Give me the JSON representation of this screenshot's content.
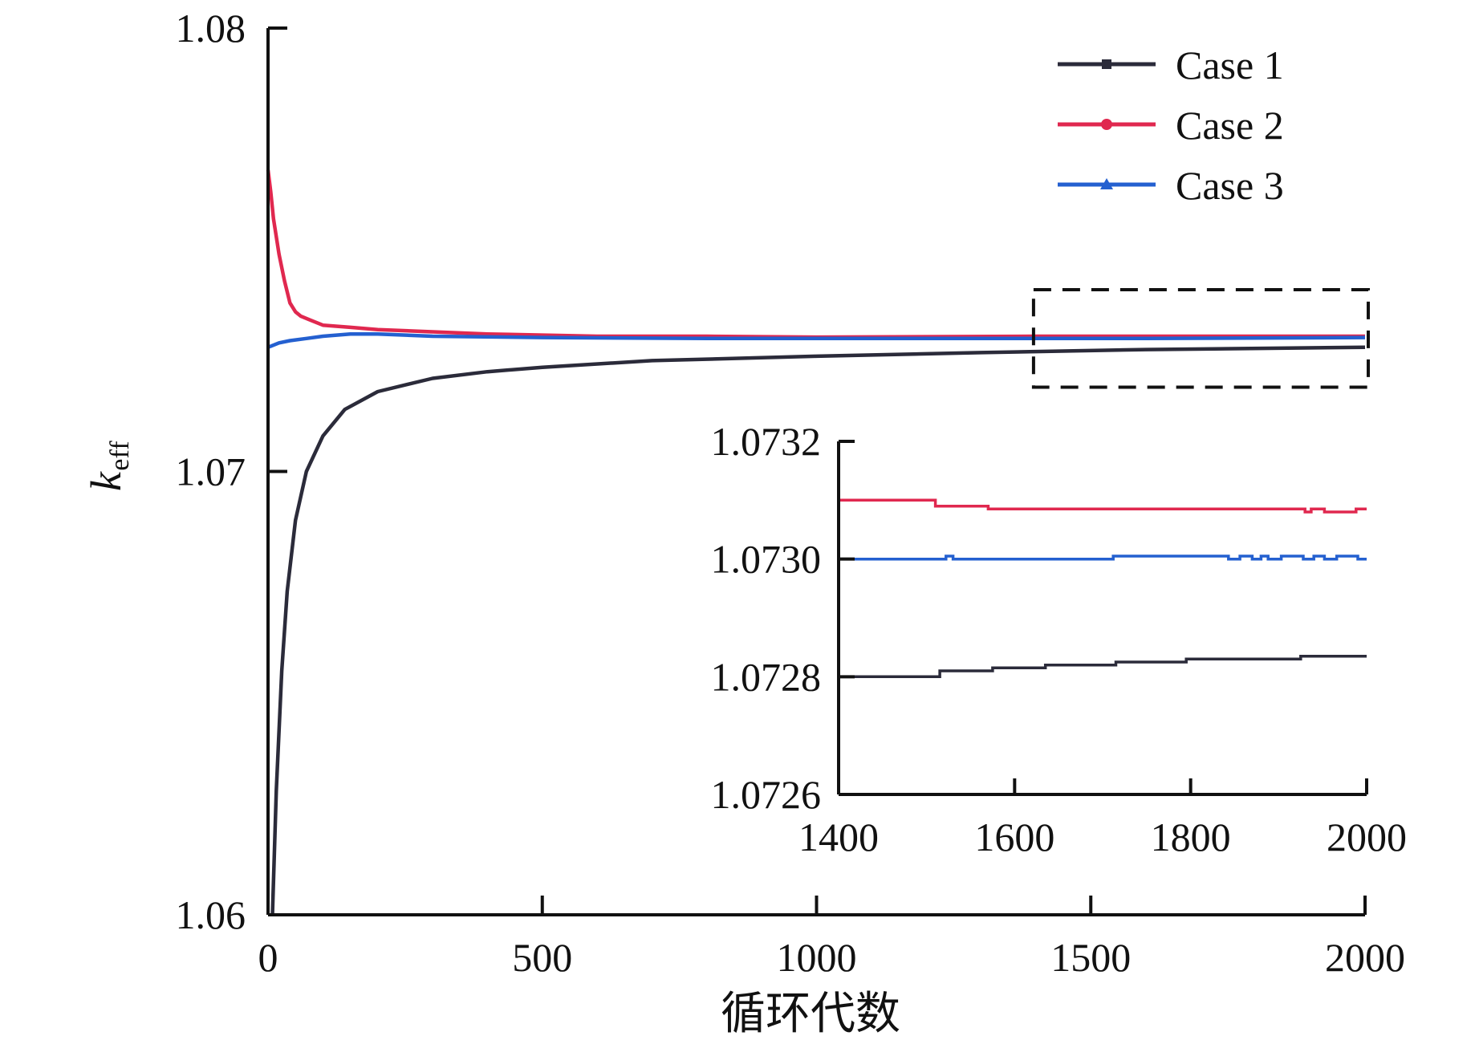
{
  "chart_data": [
    {
      "type": "line",
      "xlabel": "循环代数",
      "ylabel": "k",
      "ylabel_sub": "eff",
      "xlim": [
        0,
        2000
      ],
      "ylim": [
        1.06,
        1.08
      ],
      "xticks": [
        0,
        500,
        1000,
        1500,
        2000
      ],
      "xtick_labels": [
        "0",
        "500",
        "1000",
        "1500",
        "2000"
      ],
      "yticks": [
        1.06,
        1.07,
        1.08
      ],
      "ytick_labels": [
        "1.06",
        "1.07",
        "1.08"
      ],
      "legend": {
        "position": "top-right",
        "entries": [
          "Case 1",
          "Case 2",
          "Case 3"
        ]
      },
      "series": [
        {
          "name": "Case 1",
          "color": "#2b2b3a",
          "marker": "square",
          "x": [
            8,
            15,
            25,
            35,
            50,
            70,
            100,
            140,
            200,
            300,
            400,
            500,
            700,
            1000,
            1300,
            1600,
            2000
          ],
          "y": [
            1.06,
            1.0628,
            1.0655,
            1.0673,
            1.0689,
            1.07,
            1.0708,
            1.0714,
            1.0718,
            1.0721,
            1.07225,
            1.07235,
            1.0725,
            1.0726,
            1.07268,
            1.07275,
            1.0728
          ]
        },
        {
          "name": "Case 2",
          "color": "#e0284f",
          "marker": "circle",
          "x": [
            0,
            5,
            10,
            20,
            30,
            40,
            50,
            60,
            80,
            100,
            150,
            200,
            300,
            400,
            600,
            800,
            1000,
            1400,
            2000
          ],
          "y": [
            1.0768,
            1.0763,
            1.0757,
            1.0749,
            1.0743,
            1.0738,
            1.0736,
            1.0735,
            1.0734,
            1.0733,
            1.07325,
            1.0732,
            1.07315,
            1.0731,
            1.07305,
            1.07305,
            1.07303,
            1.07305,
            1.07305
          ]
        },
        {
          "name": "Case 3",
          "color": "#2460d0",
          "marker": "triangle",
          "x": [
            0,
            20,
            40,
            70,
            100,
            150,
            200,
            300,
            500,
            800,
            1200,
            1600,
            2000
          ],
          "y": [
            1.0728,
            1.0729,
            1.07295,
            1.073,
            1.07305,
            1.0731,
            1.0731,
            1.07305,
            1.07302,
            1.073,
            1.073,
            1.073,
            1.07302
          ]
        }
      ]
    },
    {
      "type": "line",
      "note": "inset zoom of region x 1400–2000",
      "xlim": [
        1400,
        2000
      ],
      "ylim": [
        1.0726,
        1.0732
      ],
      "xticks": [
        1400,
        1600,
        1800,
        2000
      ],
      "xtick_labels": [
        "1400",
        "1600",
        "1800",
        "2000"
      ],
      "yticks": [
        1.0726,
        1.0728,
        1.073,
        1.0732
      ],
      "ytick_labels": [
        "1.0726",
        "1.0728",
        "1.0730",
        "1.0732"
      ],
      "series": [
        {
          "name": "Case 1",
          "color": "#2b2b3a",
          "x": [
            1400,
            1515,
            1515,
            1575,
            1575,
            1635,
            1635,
            1715,
            1715,
            1795,
            1795,
            1925,
            1925,
            2000
          ],
          "y": [
            1.0728,
            1.0728,
            1.07281,
            1.07281,
            1.072815,
            1.072815,
            1.07282,
            1.07282,
            1.072825,
            1.072825,
            1.07283,
            1.07283,
            1.072835,
            1.072835
          ]
        },
        {
          "name": "Case 2",
          "color": "#e0284f",
          "x": [
            1400,
            1510,
            1510,
            1570,
            1570,
            1930,
            1930,
            1937,
            1937,
            1952,
            1952,
            1988,
            1988,
            2000
          ],
          "y": [
            1.0731,
            1.0731,
            1.07309,
            1.07309,
            1.073085,
            1.073085,
            1.07308,
            1.07308,
            1.073085,
            1.073085,
            1.07308,
            1.07308,
            1.073085,
            1.073085
          ]
        },
        {
          "name": "Case 3",
          "color": "#2460d0",
          "x": [
            1400,
            1522,
            1522,
            1530,
            1530,
            1712,
            1712,
            1740,
            1740,
            1843,
            1843,
            1856,
            1856,
            1870,
            1870,
            1880,
            1880,
            1888,
            1888,
            1903,
            1903,
            1928,
            1928,
            1940,
            1940,
            1952,
            1952,
            1966,
            1966,
            1990,
            1990,
            2000
          ],
          "y": [
            1.073,
            1.073,
            1.073005,
            1.073005,
            1.073,
            1.073,
            1.073005,
            1.073005,
            1.073005,
            1.073005,
            1.073,
            1.073,
            1.073005,
            1.073005,
            1.073,
            1.073,
            1.073005,
            1.073005,
            1.073,
            1.073,
            1.073005,
            1.073005,
            1.073,
            1.073,
            1.073005,
            1.073005,
            1.073,
            1.073,
            1.073005,
            1.073005,
            1.073,
            1.073
          ]
        }
      ]
    }
  ]
}
